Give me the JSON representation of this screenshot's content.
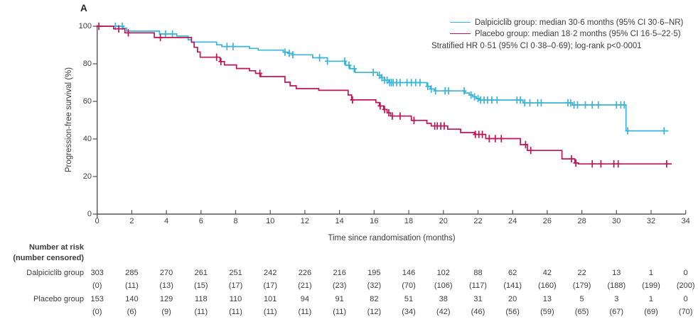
{
  "figure": {
    "panel": "A"
  },
  "chart_data": {
    "type": "line",
    "subtype": "kaplan-meier-step",
    "title": "",
    "xlabel": "Time since randomisation (months)",
    "ylabel": "Progression-free survival (%)",
    "xlim": [
      0,
      34
    ],
    "ylim": [
      0,
      100
    ],
    "xticks": [
      0,
      2,
      4,
      6,
      8,
      10,
      12,
      14,
      16,
      18,
      20,
      22,
      24,
      26,
      28,
      30,
      32,
      34
    ],
    "yticks": [
      0,
      20,
      40,
      60,
      80,
      100
    ],
    "grid": false,
    "legend_position": "top-right",
    "annotation": "Stratified HR 0·51 (95% CI 0·38–0·69); log-rank p<0·0001",
    "axis_color": "#55565a",
    "text_color": "#3c3c3c",
    "series": [
      {
        "name": "Dalpiciclib group",
        "color": "#3BB4D8",
        "legend_label": "Dalpiciclib group: median 30·6 months (95% CI 30·6–NR)",
        "median_months": 30.6,
        "end_time": 33.0,
        "steps": [
          [
            0,
            100
          ],
          [
            1.5,
            99.0
          ],
          [
            1.7,
            97.4
          ],
          [
            3.6,
            95.9
          ],
          [
            4.6,
            94.8
          ],
          [
            5.25,
            92.8
          ],
          [
            5.45,
            91.6
          ],
          [
            6.9,
            90.1
          ],
          [
            7.2,
            89.2
          ],
          [
            8.8,
            88.2
          ],
          [
            9.3,
            87.3
          ],
          [
            10.75,
            86.2
          ],
          [
            11.05,
            85.6
          ],
          [
            11.3,
            84.8
          ],
          [
            12.45,
            83.2
          ],
          [
            13.3,
            81.4
          ],
          [
            14.35,
            79.2
          ],
          [
            14.6,
            77.4
          ],
          [
            14.9,
            75.4
          ],
          [
            16.2,
            73.9
          ],
          [
            16.4,
            72.6
          ],
          [
            16.6,
            71.3
          ],
          [
            16.85,
            70.0
          ],
          [
            19.05,
            68.0
          ],
          [
            19.25,
            66.6
          ],
          [
            19.5,
            65.6
          ],
          [
            21.25,
            64.5
          ],
          [
            21.5,
            63.4
          ],
          [
            21.7,
            62.4
          ],
          [
            21.9,
            61.5
          ],
          [
            22.1,
            60.7
          ],
          [
            24.6,
            59.2
          ],
          [
            27.45,
            58.1
          ],
          [
            30.55,
            44.3
          ]
        ],
        "censor_times": [
          1.05,
          1.45,
          3.95,
          4.35,
          7.5,
          7.85,
          10.85,
          11.1,
          11.3,
          12.85,
          13.3,
          14.3,
          14.55,
          14.85,
          15.95,
          16.3,
          16.45,
          16.6,
          16.75,
          16.9,
          17.0,
          17.1,
          17.3,
          17.5,
          17.9,
          18.15,
          18.4,
          18.65,
          19.1,
          19.3,
          19.55,
          20.1,
          20.3,
          21.2,
          21.6,
          21.8,
          22.0,
          22.15,
          22.35,
          22.55,
          22.8,
          23.1,
          24.25,
          24.45,
          24.7,
          25.0,
          25.45,
          25.65,
          27.2,
          27.35,
          27.55,
          27.75,
          28.2,
          28.6,
          28.95,
          30.0,
          30.25,
          30.45,
          30.65,
          32.75
        ]
      },
      {
        "name": "Placebo group",
        "color": "#C01457",
        "legend_label": "Placebo group: median 18·2 months (95% CI 16·5–22·5)",
        "median_months": 18.2,
        "end_time": 33.2,
        "steps": [
          [
            0,
            100
          ],
          [
            0.95,
            98.6
          ],
          [
            1.6,
            96.5
          ],
          [
            3.3,
            94.0
          ],
          [
            5.45,
            91.5
          ],
          [
            5.6,
            88.8
          ],
          [
            5.8,
            86.3
          ],
          [
            5.95,
            83.5
          ],
          [
            7.1,
            81.2
          ],
          [
            7.35,
            79.4
          ],
          [
            8.05,
            77.5
          ],
          [
            8.8,
            76.3
          ],
          [
            9.15,
            74.9
          ],
          [
            9.45,
            73.2
          ],
          [
            10.85,
            70.2
          ],
          [
            11.15,
            68.3
          ],
          [
            11.5,
            66.8
          ],
          [
            12.8,
            65.9
          ],
          [
            14.5,
            63.4
          ],
          [
            14.7,
            60.8
          ],
          [
            16.1,
            59.4
          ],
          [
            16.3,
            57.6
          ],
          [
            16.55,
            55.7
          ],
          [
            16.75,
            53.9
          ],
          [
            16.95,
            52.2
          ],
          [
            18.15,
            49.9
          ],
          [
            19.05,
            48.3
          ],
          [
            19.3,
            46.9
          ],
          [
            20.25,
            45.2
          ],
          [
            21.0,
            43.4
          ],
          [
            21.8,
            42.4
          ],
          [
            22.45,
            40.2
          ],
          [
            24.45,
            37.0
          ],
          [
            24.85,
            33.9
          ],
          [
            26.85,
            29.4
          ],
          [
            27.6,
            27.2
          ],
          [
            27.8,
            26.7
          ]
        ],
        "censor_times": [
          0.1,
          1.25,
          1.8,
          3.65,
          6.9,
          7.15,
          9.4,
          14.75,
          16.35,
          16.6,
          16.85,
          17.05,
          17.5,
          18.3,
          19.5,
          19.65,
          19.85,
          20.05,
          21.85,
          22.05,
          22.25,
          22.65,
          23.0,
          23.35,
          24.75,
          25.05,
          27.4,
          27.65,
          28.6,
          29.1,
          29.85,
          30.1,
          32.9
        ]
      }
    ]
  },
  "at_risk": {
    "header_line1": "Number at risk",
    "header_line2": "(number censored)",
    "rows": [
      {
        "label": "Dalpiciclib group",
        "counts": [
          303,
          285,
          270,
          261,
          251,
          242,
          226,
          216,
          195,
          146,
          102,
          88,
          62,
          42,
          22,
          13,
          1,
          0
        ],
        "censored": [
          "(0)",
          "(11)",
          "(13)",
          "(15)",
          "(17)",
          "(17)",
          "(21)",
          "(23)",
          "(32)",
          "(70)",
          "(106)",
          "(117)",
          "(141)",
          "(160)",
          "(179)",
          "(188)",
          "(199)",
          "(200)"
        ]
      },
      {
        "label": "Placebo group",
        "counts": [
          153,
          140,
          129,
          118,
          110,
          101,
          94,
          91,
          82,
          51,
          38,
          31,
          20,
          13,
          5,
          3,
          1,
          0
        ],
        "censored": [
          "(0)",
          "(6)",
          "(9)",
          "(11)",
          "(11)",
          "(11)",
          "(11)",
          "(11)",
          "(12)",
          "(34)",
          "(42)",
          "(46)",
          "(56)",
          "(59)",
          "(65)",
          "(67)",
          "(69)",
          "(70)"
        ]
      }
    ]
  }
}
